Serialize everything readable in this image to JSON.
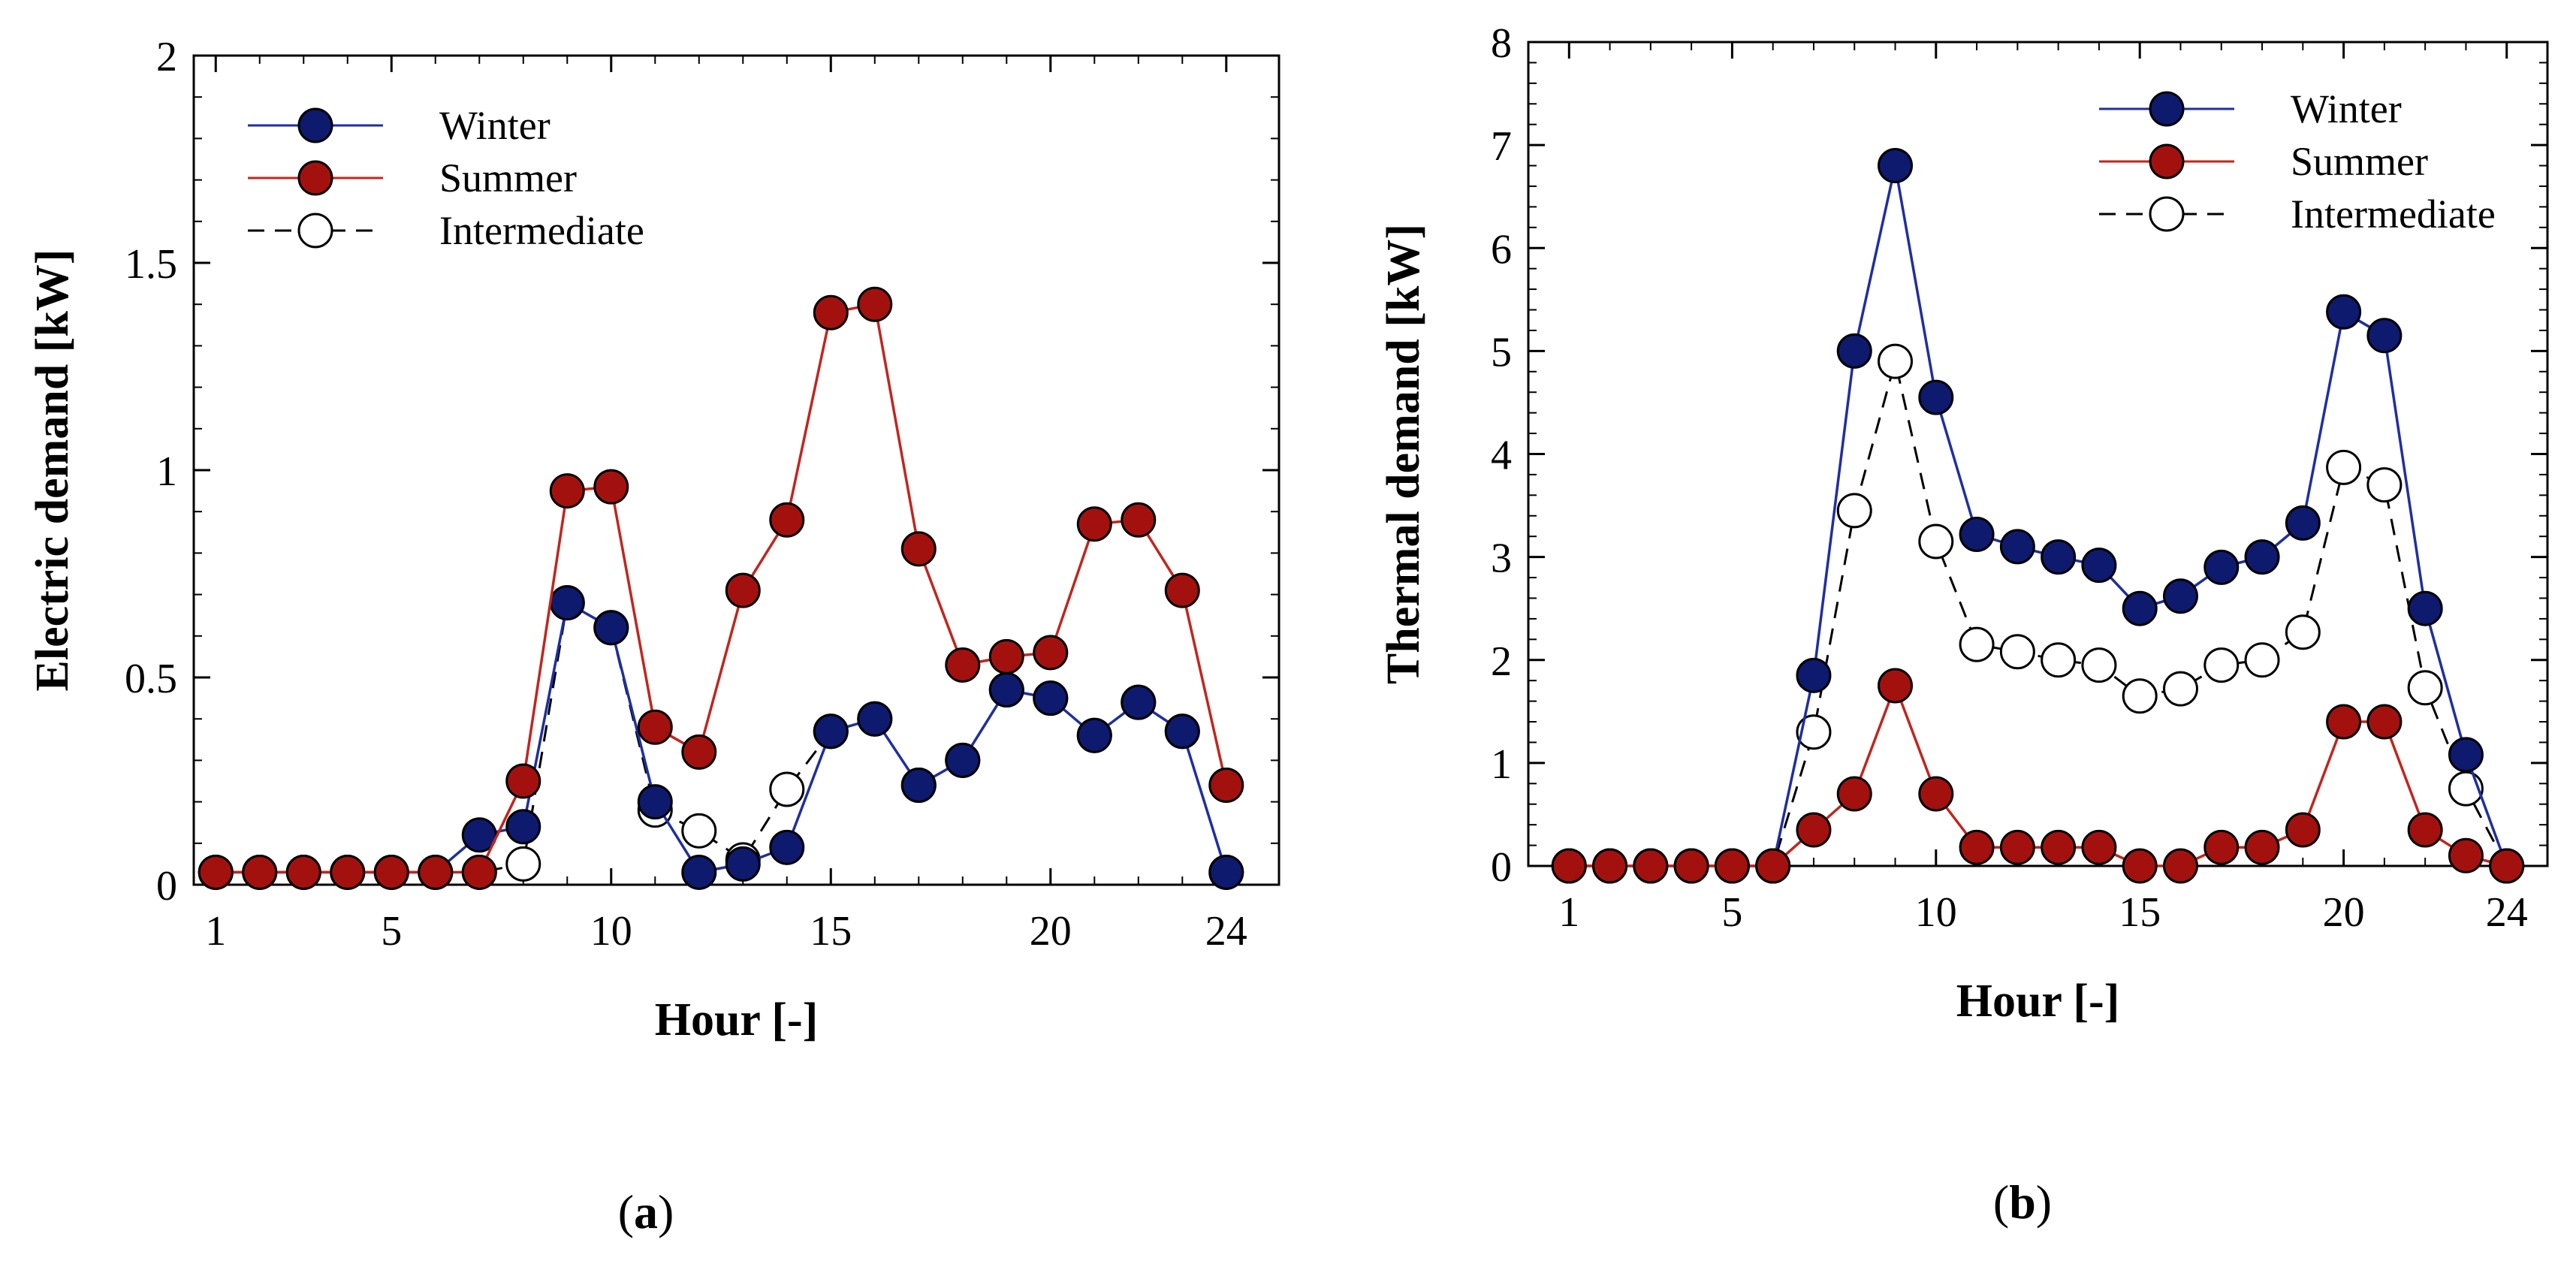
{
  "chart_data": [
    {
      "type": "line",
      "panel_label": "a",
      "title": "",
      "xlabel": "Hour [-]",
      "ylabel": "Electric demand [kW]",
      "xlim": [
        0.5,
        25.2
      ],
      "ylim": [
        0,
        2
      ],
      "xticks": [
        1,
        5,
        10,
        15,
        20,
        24
      ],
      "yticks": [
        0,
        0.5,
        1,
        1.5,
        2
      ],
      "ytick_labels": [
        "0",
        "0.5",
        "1",
        "1.5",
        "2"
      ],
      "legend_position": "top-left",
      "x": [
        1,
        2,
        3,
        4,
        5,
        6,
        7,
        8,
        9,
        10,
        11,
        12,
        13,
        14,
        15,
        16,
        17,
        18,
        19,
        20,
        21,
        22,
        23,
        24
      ],
      "series": [
        {
          "name": "Intermediate",
          "style": "dashed",
          "color": "#000000",
          "marker_fill": "#ffffff",
          "values": [
            0.03,
            0.03,
            0.03,
            0.03,
            0.03,
            0.03,
            0.03,
            0.05,
            0.68,
            0.62,
            0.18,
            0.13,
            0.06,
            0.23,
            0.37,
            0.4,
            0.24,
            0.3,
            0.47,
            0.45,
            0.36,
            0.44,
            0.37,
            0.03
          ]
        },
        {
          "name": "Winter",
          "style": "solid",
          "color": "#1f2f9f",
          "marker_fill": "#0d1a6e",
          "values": [
            0.03,
            0.03,
            0.03,
            0.03,
            0.03,
            0.03,
            0.12,
            0.14,
            0.68,
            0.62,
            0.2,
            0.03,
            0.05,
            0.09,
            0.37,
            0.4,
            0.24,
            0.3,
            0.47,
            0.45,
            0.36,
            0.44,
            0.37,
            0.03
          ]
        },
        {
          "name": "Summer",
          "style": "solid",
          "color": "#c0261f",
          "marker_fill": "#a3110f",
          "values": [
            0.03,
            0.03,
            0.03,
            0.03,
            0.03,
            0.03,
            0.03,
            0.25,
            0.95,
            0.96,
            0.38,
            0.32,
            0.71,
            0.88,
            1.38,
            1.4,
            0.81,
            0.53,
            0.55,
            0.56,
            0.87,
            0.88,
            0.71,
            0.24
          ]
        }
      ]
    },
    {
      "type": "line",
      "panel_label": "b",
      "title": "",
      "xlabel": "Hour [-]",
      "ylabel": "Thermal demand [kW]",
      "xlim": [
        0,
        25
      ],
      "ylim": [
        0,
        8
      ],
      "xticks": [
        1,
        5,
        10,
        15,
        20,
        24
      ],
      "yticks": [
        0,
        1,
        2,
        3,
        4,
        5,
        6,
        7,
        8
      ],
      "ytick_labels": [
        "0",
        "1",
        "2",
        "3",
        "4",
        "5",
        "6",
        "7",
        "8"
      ],
      "legend_position": "top-right",
      "x": [
        1,
        2,
        3,
        4,
        5,
        6,
        7,
        8,
        9,
        10,
        11,
        12,
        13,
        14,
        15,
        16,
        17,
        18,
        19,
        20,
        21,
        22,
        23,
        24
      ],
      "series": [
        {
          "name": "Intermediate",
          "style": "dashed",
          "color": "#000000",
          "marker_fill": "#ffffff",
          "values": [
            0,
            0,
            0,
            0,
            0,
            0,
            1.3,
            3.45,
            4.9,
            3.15,
            2.15,
            2.08,
            2.0,
            1.95,
            1.65,
            1.72,
            1.95,
            2.0,
            2.27,
            3.87,
            3.7,
            1.73,
            0.75,
            0
          ]
        },
        {
          "name": "Winter",
          "style": "solid",
          "color": "#1f2f9f",
          "marker_fill": "#0d1a6e",
          "values": [
            0,
            0,
            0,
            0,
            0,
            0,
            1.85,
            5.0,
            6.8,
            4.55,
            3.22,
            3.1,
            3.0,
            2.92,
            2.5,
            2.62,
            2.9,
            3.0,
            3.33,
            5.38,
            5.15,
            2.5,
            1.08,
            0
          ]
        },
        {
          "name": "Summer",
          "style": "solid",
          "color": "#c0261f",
          "marker_fill": "#a3110f",
          "values": [
            0,
            0,
            0,
            0,
            0,
            0,
            0.35,
            0.7,
            1.75,
            0.7,
            0.18,
            0.18,
            0.18,
            0.18,
            0,
            0,
            0.18,
            0.18,
            0.35,
            1.4,
            1.4,
            0.35,
            0.1,
            0
          ]
        }
      ]
    }
  ],
  "legend_order": [
    "Winter",
    "Summer",
    "Intermediate"
  ]
}
